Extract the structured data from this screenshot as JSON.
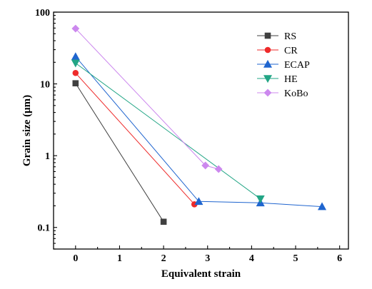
{
  "chart_data": {
    "type": "line",
    "xlabel": "Equivalent strain",
    "ylabel": "Grain size (μm)",
    "xlim": [
      -0.5,
      6.2
    ],
    "ylim": [
      0.05,
      100
    ],
    "y_scale": "log",
    "x_ticks": [
      0,
      1,
      2,
      3,
      4,
      5,
      6
    ],
    "x_tick_labels": [
      "0",
      "1",
      "2",
      "3",
      "4",
      "5",
      "6"
    ],
    "y_ticks": [
      0.1,
      1,
      10,
      100
    ],
    "y_tick_labels": [
      "0.1",
      "1",
      "10",
      "100"
    ],
    "legend_position": "top-right",
    "grid": false,
    "series": [
      {
        "name": "RS",
        "color": "#404040",
        "marker": "square",
        "x": [
          0,
          2.0
        ],
        "y": [
          10.2,
          0.12
        ]
      },
      {
        "name": "CR",
        "color": "#ee2a2a",
        "marker": "circle",
        "x": [
          0,
          2.7
        ],
        "y": [
          14.2,
          0.21
        ]
      },
      {
        "name": "ECAP",
        "color": "#1f65cf",
        "marker": "triangle-up",
        "x": [
          0,
          2.8,
          4.2,
          5.6
        ],
        "y": [
          24.0,
          0.23,
          0.22,
          0.195
        ]
      },
      {
        "name": "HE",
        "color": "#22a585",
        "marker": "triangle-down",
        "x": [
          0,
          4.2
        ],
        "y": [
          19.5,
          0.25
        ]
      },
      {
        "name": "KoBo",
        "color": "#cc88ee",
        "marker": "diamond",
        "x": [
          0,
          2.95,
          3.25
        ],
        "y": [
          59.0,
          0.73,
          0.65
        ]
      }
    ]
  }
}
